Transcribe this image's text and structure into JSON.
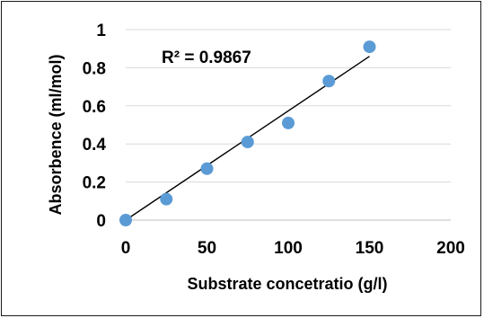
{
  "chart_data": {
    "type": "scatter",
    "title": "",
    "xlabel": "Substrate concetratio (g/l)",
    "ylabel": "Absorbence (ml/mol)",
    "xlim": [
      0,
      200
    ],
    "ylim": [
      0,
      1
    ],
    "x_ticks": [
      "0",
      "50",
      "100",
      "150",
      "200"
    ],
    "y_ticks": [
      "0",
      "0.2",
      "0.4",
      "0.6",
      "0.8",
      "1"
    ],
    "grid": "horizontal",
    "legend": "none",
    "series": [
      {
        "x": [
          0,
          25,
          50,
          75,
          100,
          125,
          150
        ],
        "y": [
          0.0,
          0.11,
          0.27,
          0.41,
          0.51,
          0.73,
          0.91
        ]
      }
    ],
    "trendline": {
      "type": "linear",
      "x": [
        0,
        150
      ],
      "y": [
        0.0,
        0.86
      ]
    },
    "annotation": "R² = 0.9867",
    "colors": {
      "marker": "#5b9bd5",
      "trendline": "#000000",
      "grid": "#d9d9d9",
      "axis": "#bfbfbf"
    }
  }
}
